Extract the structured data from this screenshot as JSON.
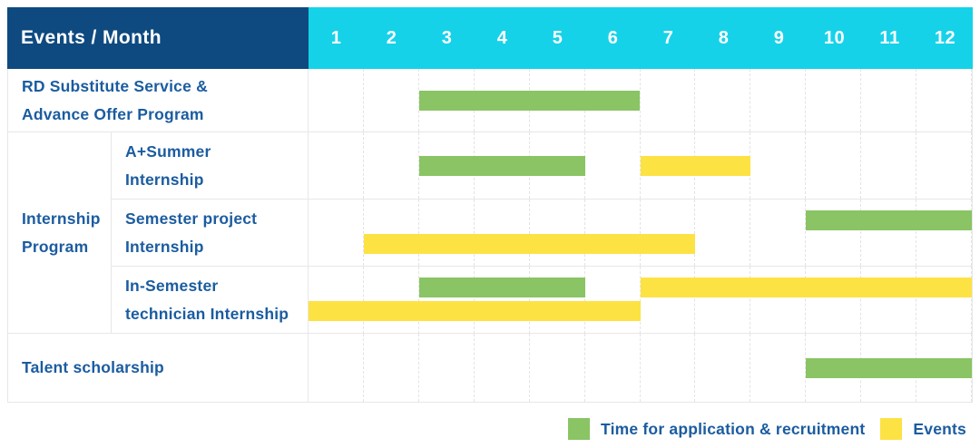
{
  "palette": {
    "navy": "#0E4A80",
    "cyan": "#15D2E9",
    "green": "#8AC465",
    "yellow": "#FDE244",
    "label_blue": "#1B5CA0",
    "grid_line": "#E7E7E7"
  },
  "header": {
    "title": "Events / Month",
    "months": [
      "1",
      "2",
      "3",
      "4",
      "5",
      "6",
      "7",
      "8",
      "9",
      "10",
      "11",
      "12"
    ]
  },
  "rows": [
    {
      "type": "simple",
      "label_lines": [
        "RD Substitute Service &",
        "Advance Offer Program"
      ],
      "lines": [
        [
          {
            "color": "green",
            "start": 3,
            "end": 6
          }
        ]
      ]
    },
    {
      "type": "group",
      "group_label_lines": [
        "Internship",
        "Program"
      ],
      "subrows": [
        {
          "label_lines": [
            "A+Summer",
            "Internship"
          ],
          "lines": [
            [
              {
                "color": "green",
                "start": 3,
                "end": 5
              },
              {
                "color": "yellow",
                "start": 7,
                "end": 8
              }
            ]
          ]
        },
        {
          "label_lines": [
            "Semester project",
            "Internship"
          ],
          "lines": [
            [
              {
                "color": "green",
                "start": 10,
                "end": 12
              }
            ],
            [
              {
                "color": "yellow",
                "start": 2,
                "end": 7
              }
            ]
          ]
        },
        {
          "label_lines": [
            "In-Semester",
            "technician Internship"
          ],
          "lines": [
            [
              {
                "color": "green",
                "start": 3,
                "end": 5
              },
              {
                "color": "yellow",
                "start": 7,
                "end": 12
              }
            ],
            [
              {
                "color": "yellow",
                "start": 1,
                "end": 6
              }
            ]
          ]
        }
      ]
    },
    {
      "type": "simple",
      "label_lines": [
        "Talent scholarship"
      ],
      "lines": [
        [
          {
            "color": "green",
            "start": 10,
            "end": 12
          }
        ]
      ]
    }
  ],
  "legend": [
    {
      "color": "green",
      "label": "Time for application & recruitment"
    },
    {
      "color": "yellow",
      "label": "Events"
    }
  ],
  "chart_data": {
    "type": "bar",
    "subtype": "gantt",
    "title": "Events / Month",
    "x": {
      "label": "Month",
      "ticks": [
        1,
        2,
        3,
        4,
        5,
        6,
        7,
        8,
        9,
        10,
        11,
        12
      ],
      "range": [
        1,
        12
      ]
    },
    "legend": [
      {
        "name": "Time for application & recruitment",
        "color": "#8AC465"
      },
      {
        "name": "Events",
        "color": "#FDE244"
      }
    ],
    "legend_position": "bottom-right",
    "grid": "monthly dashed vertical lines",
    "series": [
      {
        "row": "RD Substitute Service & Advance Offer Program",
        "group": null,
        "bars": [
          {
            "kind": "Time for application & recruitment",
            "start_month": 3,
            "end_month": 6
          }
        ]
      },
      {
        "row": "A+Summer Internship",
        "group": "Internship Program",
        "bars": [
          {
            "kind": "Time for application & recruitment",
            "start_month": 3,
            "end_month": 5
          },
          {
            "kind": "Events",
            "start_month": 7,
            "end_month": 8
          }
        ]
      },
      {
        "row": "Semester project Internship",
        "group": "Internship Program",
        "bars": [
          {
            "kind": "Time for application & recruitment",
            "start_month": 10,
            "end_month": 12
          },
          {
            "kind": "Events",
            "start_month": 2,
            "end_month": 7
          }
        ]
      },
      {
        "row": "In-Semester technician Internship",
        "group": "Internship Program",
        "bars": [
          {
            "kind": "Time for application & recruitment",
            "start_month": 3,
            "end_month": 5
          },
          {
            "kind": "Events",
            "start_month": 7,
            "end_month": 12
          },
          {
            "kind": "Events",
            "start_month": 1,
            "end_month": 6
          }
        ]
      },
      {
        "row": "Talent scholarship",
        "group": null,
        "bars": [
          {
            "kind": "Time for application & recruitment",
            "start_month": 10,
            "end_month": 12
          }
        ]
      }
    ]
  }
}
